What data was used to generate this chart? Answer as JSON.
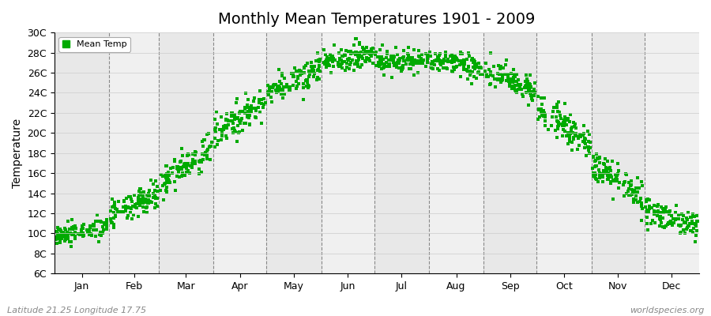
{
  "title": "Monthly Mean Temperatures 1901 - 2009",
  "ylabel": "Temperature",
  "xlabel_bottom_left": "Latitude 21.25 Longitude 17.75",
  "xlabel_bottom_right": "worldspecies.org",
  "legend_label": "Mean Temp",
  "marker_color": "#00aa00",
  "marker_size": 2.5,
  "ylim": [
    6,
    30
  ],
  "ytick_labels": [
    "6C",
    "8C",
    "10C",
    "12C",
    "14C",
    "16C",
    "18C",
    "20C",
    "22C",
    "24C",
    "26C",
    "28C",
    "30C"
  ],
  "ytick_values": [
    6,
    8,
    10,
    12,
    14,
    16,
    18,
    20,
    22,
    24,
    26,
    28,
    30
  ],
  "month_names": [
    "Jan",
    "Feb",
    "Mar",
    "Apr",
    "May",
    "Jun",
    "Jul",
    "Aug",
    "Sep",
    "Oct",
    "Nov",
    "Dec"
  ],
  "month_days": [
    31,
    28,
    31,
    30,
    31,
    30,
    31,
    31,
    30,
    31,
    30,
    31
  ],
  "month_means": [
    10.2,
    12.8,
    16.8,
    21.5,
    25.3,
    27.5,
    27.2,
    26.8,
    25.2,
    20.8,
    15.2,
    11.5
  ],
  "month_stds": [
    0.5,
    0.7,
    0.8,
    0.8,
    0.7,
    0.6,
    0.6,
    0.6,
    0.7,
    0.8,
    0.8,
    0.7
  ],
  "n_years": 109,
  "background_colors": [
    "#e8e8e8",
    "#f0f0f0"
  ],
  "grid_color": "#888888",
  "title_fontsize": 14,
  "tick_fontsize": 9,
  "label_fontsize": 10,
  "fig_width": 9.0,
  "fig_height": 4.0,
  "dpi": 100
}
